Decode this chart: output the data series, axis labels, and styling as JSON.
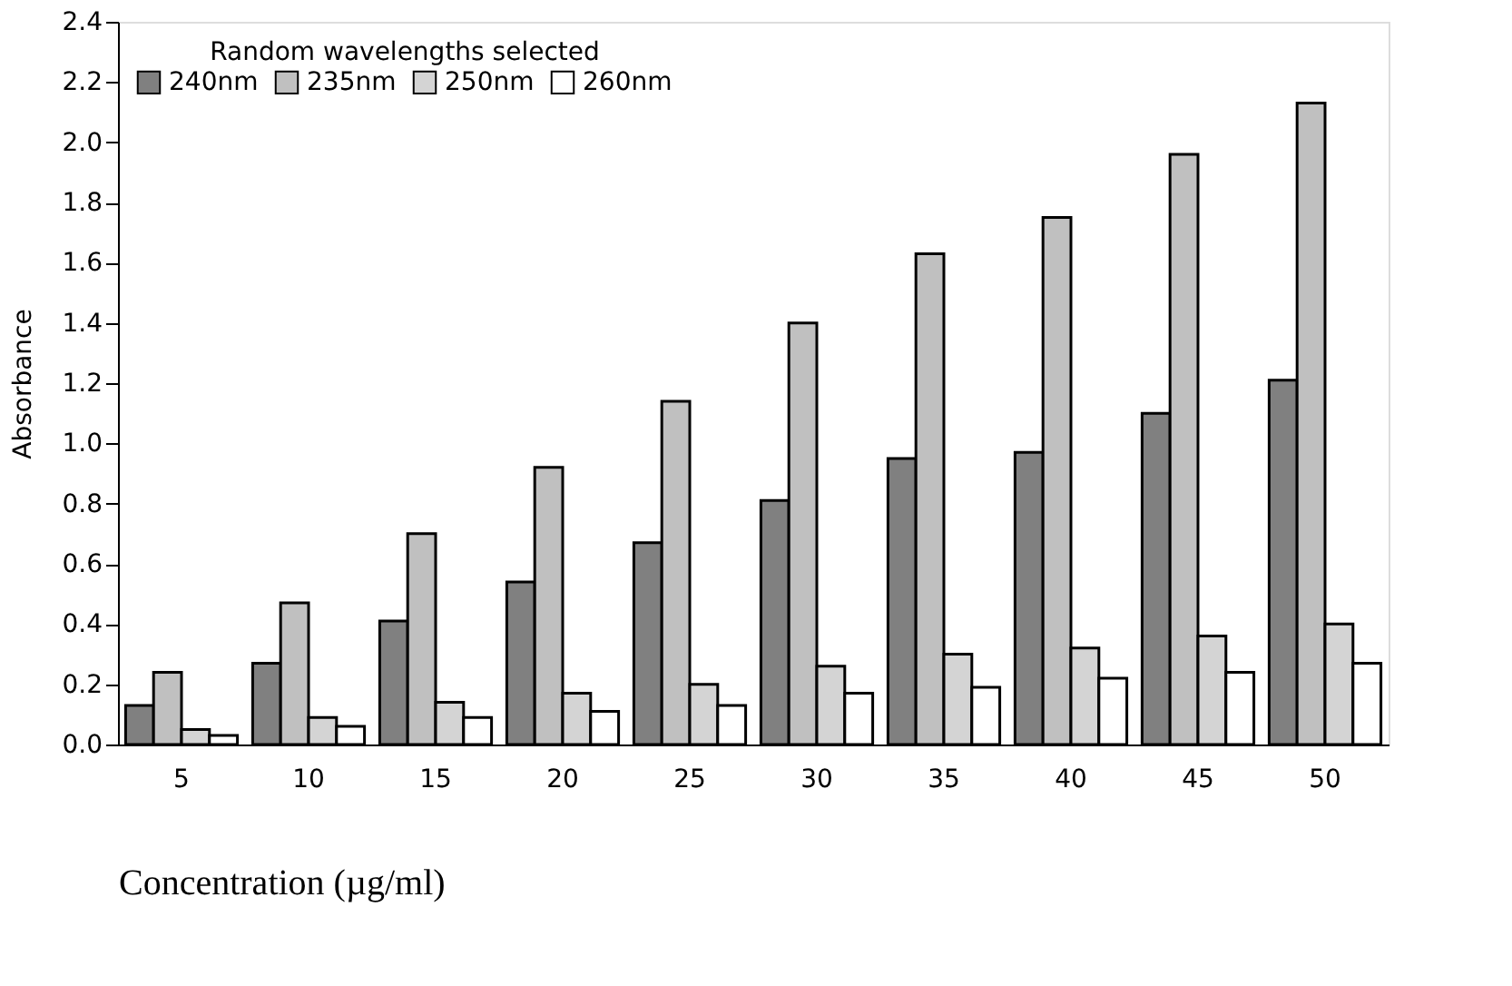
{
  "chart_data": {
    "type": "bar",
    "xlabel": "Concentration (µg/ml)",
    "ylabel": "Absorbance",
    "legend_title": "Random wavelengths selected",
    "legend": "top left",
    "grid": false,
    "categories": [
      "5",
      "10",
      "15",
      "20",
      "25",
      "30",
      "35",
      "40",
      "45",
      "50"
    ],
    "ylim": [
      0,
      2.4
    ],
    "yticks": [
      {
        "value": 0,
        "label": "0.0"
      },
      0.2,
      0.4,
      0.6,
      0.8,
      {
        "value": 1,
        "label": "1.0"
      },
      1.2,
      1.4,
      1.6,
      1.8,
      {
        "value": 2,
        "label": "2.0"
      },
      2.2,
      2.4
    ],
    "series": [
      {
        "name": "240nm",
        "color": "#808080",
        "values": [
          0.13,
          0.27,
          0.41,
          0.54,
          0.67,
          0.81,
          0.95,
          0.97,
          1.1,
          1.21
        ]
      },
      {
        "name": "235nm",
        "color": "#c0c0c0",
        "values": [
          0.24,
          0.47,
          0.7,
          0.92,
          1.14,
          1.4,
          1.63,
          1.75,
          1.96,
          2.13
        ]
      },
      {
        "name": "250nm",
        "color": "#d4d4d4",
        "values": [
          0.05,
          0.09,
          0.14,
          0.17,
          0.2,
          0.26,
          0.3,
          0.32,
          0.36,
          0.4
        ]
      },
      {
        "name": "260nm",
        "color": "#ffffff",
        "values": [
          0.03,
          0.06,
          0.09,
          0.11,
          0.13,
          0.17,
          0.19,
          0.22,
          0.24,
          0.27
        ]
      }
    ]
  }
}
